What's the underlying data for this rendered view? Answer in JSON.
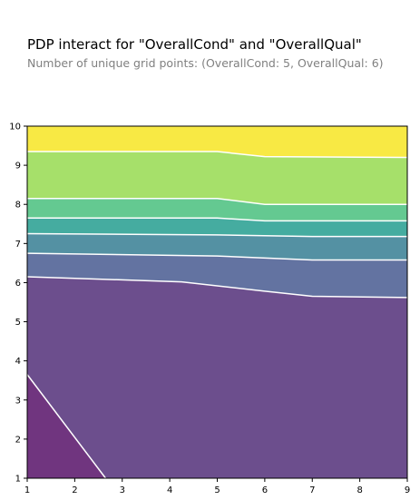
{
  "chart_data": {
    "type": "contour",
    "title": "PDP interact for \"OverallCond\" and \"OverallQual\"",
    "subtitle": "Number of unique grid points: (OverallCond: 5, OverallQual: 6)",
    "xlim": [
      1,
      9
    ],
    "ylim": [
      1,
      10
    ],
    "x_ticks": [
      1,
      2,
      3,
      4,
      5,
      6,
      7,
      8,
      9
    ],
    "y_ticks": [
      1,
      2,
      3,
      4,
      5,
      6,
      7,
      8,
      9,
      10
    ],
    "contour_boundaries": [
      [
        [
          1,
          3.65
        ],
        [
          2.65,
          1
        ]
      ],
      [
        [
          1,
          6.15
        ],
        [
          4.25,
          6.02
        ],
        [
          6,
          5.78
        ],
        [
          7,
          5.65
        ],
        [
          9,
          5.62
        ]
      ],
      [
        [
          1,
          6.75
        ],
        [
          5,
          6.68
        ],
        [
          7,
          6.58
        ],
        [
          9,
          6.58
        ]
      ],
      [
        [
          1,
          7.25
        ],
        [
          5,
          7.22
        ],
        [
          7,
          7.18
        ],
        [
          9,
          7.18
        ]
      ],
      [
        [
          1,
          7.65
        ],
        [
          5,
          7.65
        ],
        [
          6,
          7.58
        ],
        [
          9,
          7.58
        ]
      ],
      [
        [
          1,
          8.15
        ],
        [
          5,
          8.15
        ],
        [
          6,
          8.0
        ],
        [
          9,
          8.0
        ]
      ],
      [
        [
          1,
          9.35
        ],
        [
          5,
          9.35
        ],
        [
          6,
          9.22
        ],
        [
          9,
          9.2
        ]
      ]
    ],
    "band_colors": [
      "#70357f",
      "#6c4e8d",
      "#6373a1",
      "#5491a3",
      "#45aca0",
      "#64c991",
      "#a6e06a",
      "#f8e944"
    ]
  }
}
